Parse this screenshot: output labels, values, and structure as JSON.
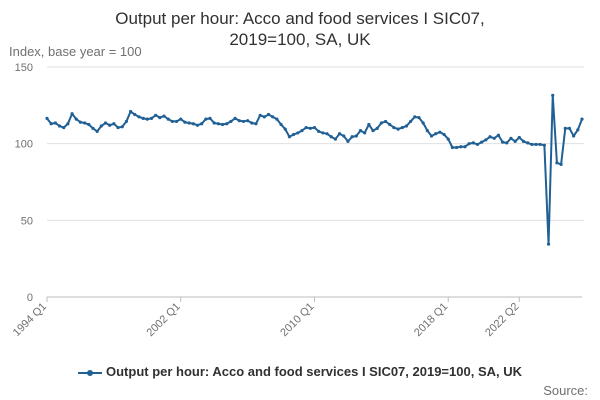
{
  "chart_data": {
    "type": "line",
    "title": "Output per hour: Acco and food services I SIC07, 2019=100, SA, UK",
    "ylabel": "Index, base year = 100",
    "ylim": [
      0,
      150
    ],
    "yticks": [
      0,
      50,
      100,
      150
    ],
    "x_start": "1994 Q1",
    "x_end": "2022 Q2",
    "xtick_labels": [
      "1994 Q1",
      "2002 Q1",
      "2010 Q1",
      "2018 Q1",
      "2022 Q2"
    ],
    "grid": true,
    "legend_position": "bottom",
    "series": [
      {
        "name": "Output per hour: Acco and food services I SIC07, 2019=100, SA, UK",
        "color": "#206095",
        "values": [
          116.5,
          113.0,
          113.5,
          111.5,
          110.5,
          113.0,
          119.5,
          116.0,
          114.0,
          113.5,
          112.5,
          110.0,
          108.0,
          111.5,
          113.5,
          112.0,
          113.0,
          110.5,
          111.0,
          114.5,
          121.0,
          119.0,
          117.5,
          116.5,
          116.0,
          116.5,
          118.5,
          117.0,
          118.0,
          116.0,
          114.5,
          114.5,
          116.0,
          114.0,
          113.5,
          113.0,
          112.0,
          113.0,
          116.0,
          116.5,
          113.5,
          113.0,
          112.5,
          113.0,
          114.5,
          116.5,
          115.0,
          114.5,
          115.0,
          113.5,
          113.0,
          118.5,
          117.5,
          119.0,
          117.5,
          116.0,
          112.5,
          109.5,
          104.5,
          106.0,
          107.0,
          108.5,
          110.5,
          110.0,
          110.5,
          108.0,
          107.0,
          106.5,
          104.5,
          103.0,
          106.5,
          105.0,
          101.5,
          104.5,
          105.0,
          108.5,
          107.0,
          112.5,
          108.5,
          110.0,
          113.5,
          114.5,
          112.5,
          110.5,
          109.5,
          110.5,
          111.5,
          114.5,
          117.5,
          117.0,
          113.5,
          108.5,
          105.0,
          106.5,
          107.5,
          106.0,
          103.0,
          97.5,
          97.5,
          98.0,
          98.0,
          100.0,
          100.5,
          99.5,
          101.0,
          102.5,
          104.5,
          103.5,
          105.5,
          101.0,
          100.5,
          103.5,
          101.5,
          104.0,
          101.5,
          100.5,
          99.5,
          99.5,
          99.5,
          99.0,
          34.5,
          131.5,
          87.5,
          86.5,
          110.0,
          110.0,
          105.0,
          109.0,
          116.0
        ]
      }
    ]
  },
  "legend": {
    "label": "Output per hour: Acco and food services I SIC07, 2019=100, SA, UK"
  },
  "source": {
    "label": "Source:"
  }
}
